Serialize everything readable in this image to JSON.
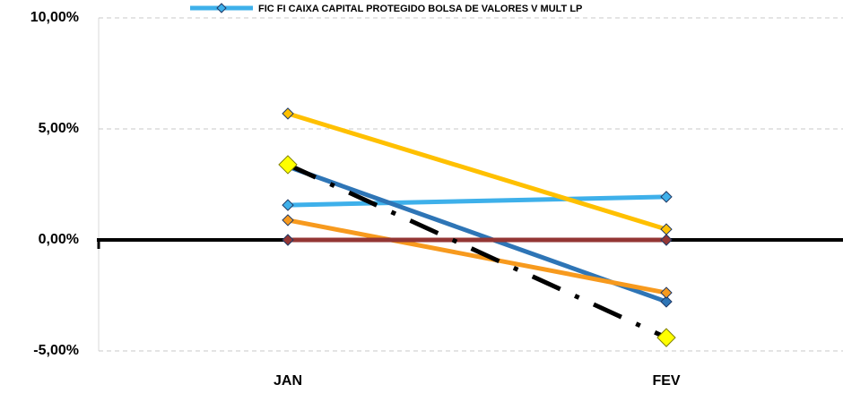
{
  "chart_data": {
    "type": "line",
    "categories": [
      "JAN",
      "FEV"
    ],
    "series": [
      {
        "name": "FIC FI CAIXA CAPITAL PROTEGIDO BOLSA DE VALORES V MULT LP",
        "color": "#3EB0EA",
        "values": [
          1.57,
          1.94
        ]
      },
      {
        "color": "#FFC000",
        "values": [
          5.69,
          0.48
        ]
      },
      {
        "color": "#2E75B6",
        "values": [
          3.3,
          -2.78
        ]
      },
      {
        "color": "#F79A1E",
        "values": [
          0.89,
          -2.38
        ]
      },
      {
        "color": "#943634",
        "values": [
          0,
          0
        ]
      },
      {
        "color": "#000000",
        "marker_color": "#FFFF00",
        "dash": true,
        "values": [
          3.39,
          -4.4
        ]
      }
    ],
    "ylim": [
      -5,
      10
    ],
    "yticks": [
      {
        "value": -5,
        "label": "-5,00%"
      },
      {
        "value": 0,
        "label": "0,00%"
      },
      {
        "value": 5,
        "label": "5,00%"
      },
      {
        "value": 10,
        "label": "10,00%"
      }
    ],
    "grid": true
  }
}
